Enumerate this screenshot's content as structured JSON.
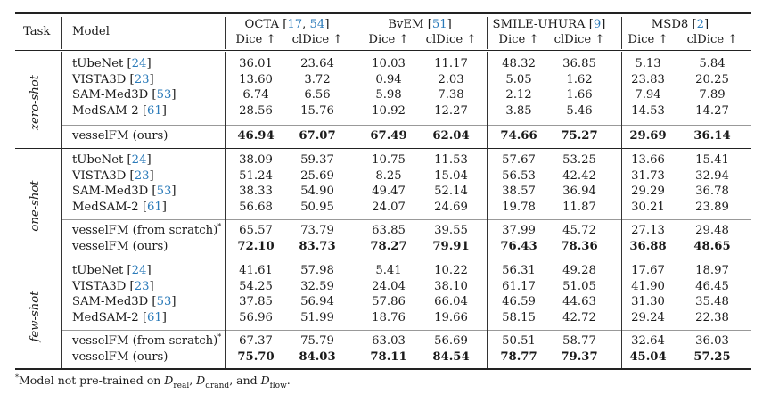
{
  "header": {
    "task": "Task",
    "model": "Model",
    "datasets": [
      {
        "name": "OCTA",
        "refs_open": " [",
        "refs": [
          "17",
          "54"
        ],
        "refs_close": "]"
      },
      {
        "name": "BvEM",
        "refs_open": " [",
        "refs": [
          "51"
        ],
        "refs_close": "]"
      },
      {
        "name": "SMILE-UHURA",
        "refs_open": " [",
        "refs": [
          "9"
        ],
        "refs_close": "]"
      },
      {
        "name": "MSD8",
        "refs_open": " [",
        "refs": [
          "2"
        ],
        "refs_close": "]"
      }
    ],
    "metric_dice": "Dice ↑",
    "metric_cldice": "clDice ↑"
  },
  "sections": [
    {
      "task": "zero-shot",
      "baselines": [
        {
          "model": "tUbeNet",
          "ref": "24",
          "values": [
            "36.01",
            "23.64",
            "10.03",
            "11.17",
            "48.32",
            "36.85",
            "5.13",
            "5.84"
          ]
        },
        {
          "model": "VISTA3D",
          "ref": "23",
          "values": [
            "13.60",
            "3.72",
            "0.94",
            "2.03",
            "5.05",
            "1.62",
            "23.83",
            "20.25"
          ]
        },
        {
          "model": "SAM-Med3D",
          "ref": "53",
          "values": [
            "6.74",
            "6.56",
            "5.98",
            "7.38",
            "2.12",
            "1.66",
            "7.94",
            "7.89"
          ]
        },
        {
          "model": "MedSAM-2",
          "ref": "61",
          "values": [
            "28.56",
            "15.76",
            "10.92",
            "12.27",
            "3.85",
            "5.46",
            "14.53",
            "14.27"
          ]
        }
      ],
      "ours": [
        {
          "model": "vesselFM (ours)",
          "star": false,
          "values": [
            "46.94",
            "67.07",
            "67.49",
            "62.04",
            "74.66",
            "75.27",
            "29.69",
            "36.14"
          ],
          "bold": true
        }
      ]
    },
    {
      "task": "one-shot",
      "baselines": [
        {
          "model": "tUbeNet",
          "ref": "24",
          "values": [
            "38.09",
            "59.37",
            "10.75",
            "11.53",
            "57.67",
            "53.25",
            "13.66",
            "15.41"
          ]
        },
        {
          "model": "VISTA3D",
          "ref": "23",
          "values": [
            "51.24",
            "25.69",
            "8.25",
            "15.04",
            "56.53",
            "42.42",
            "31.73",
            "32.94"
          ]
        },
        {
          "model": "SAM-Med3D",
          "ref": "53",
          "values": [
            "38.33",
            "54.90",
            "49.47",
            "52.14",
            "38.57",
            "36.94",
            "29.29",
            "36.78"
          ]
        },
        {
          "model": "MedSAM-2",
          "ref": "61",
          "values": [
            "56.68",
            "50.95",
            "24.07",
            "24.69",
            "19.78",
            "11.87",
            "30.21",
            "23.89"
          ]
        }
      ],
      "ours": [
        {
          "model": "vesselFM (from scratch)",
          "star": true,
          "values": [
            "65.57",
            "73.79",
            "63.85",
            "39.55",
            "37.99",
            "45.72",
            "27.13",
            "29.48"
          ],
          "bold": false
        },
        {
          "model": "vesselFM (ours)",
          "star": false,
          "values": [
            "72.10",
            "83.73",
            "78.27",
            "79.91",
            "76.43",
            "78.36",
            "36.88",
            "48.65"
          ],
          "bold": true
        }
      ]
    },
    {
      "task": "few-shot",
      "baselines": [
        {
          "model": "tUbeNet",
          "ref": "24",
          "values": [
            "41.61",
            "57.98",
            "5.41",
            "10.22",
            "56.31",
            "49.28",
            "17.67",
            "18.97"
          ]
        },
        {
          "model": "VISTA3D",
          "ref": "23",
          "values": [
            "54.25",
            "32.59",
            "24.04",
            "38.10",
            "61.17",
            "51.05",
            "41.90",
            "46.45"
          ]
        },
        {
          "model": "SAM-Med3D",
          "ref": "53",
          "values": [
            "37.85",
            "56.94",
            "57.86",
            "66.04",
            "46.59",
            "44.63",
            "31.30",
            "35.48"
          ]
        },
        {
          "model": "MedSAM-2",
          "ref": "61",
          "values": [
            "56.96",
            "51.99",
            "18.76",
            "19.66",
            "58.15",
            "42.72",
            "29.24",
            "22.38"
          ]
        }
      ],
      "ours": [
        {
          "model": "vesselFM (from scratch)",
          "star": true,
          "values": [
            "67.37",
            "75.79",
            "63.03",
            "56.69",
            "50.51",
            "58.77",
            "32.64",
            "36.03"
          ],
          "bold": false
        },
        {
          "model": "vesselFM (ours)",
          "star": false,
          "values": [
            "75.70",
            "84.03",
            "78.11",
            "84.54",
            "78.77",
            "79.37",
            "45.04",
            "57.25"
          ],
          "bold": true
        }
      ]
    }
  ],
  "footnote": {
    "star": "*",
    "text_before": "Model not pre-trained on ",
    "d1_sub": "real",
    "sep1": ", ",
    "d2_sub": "drand",
    "sep2": ", and ",
    "d3_sub": "flow",
    "text_after": "."
  },
  "colors": {
    "ref_link": "#2a7ab9",
    "rule": "#222222",
    "separator": "#999999"
  }
}
